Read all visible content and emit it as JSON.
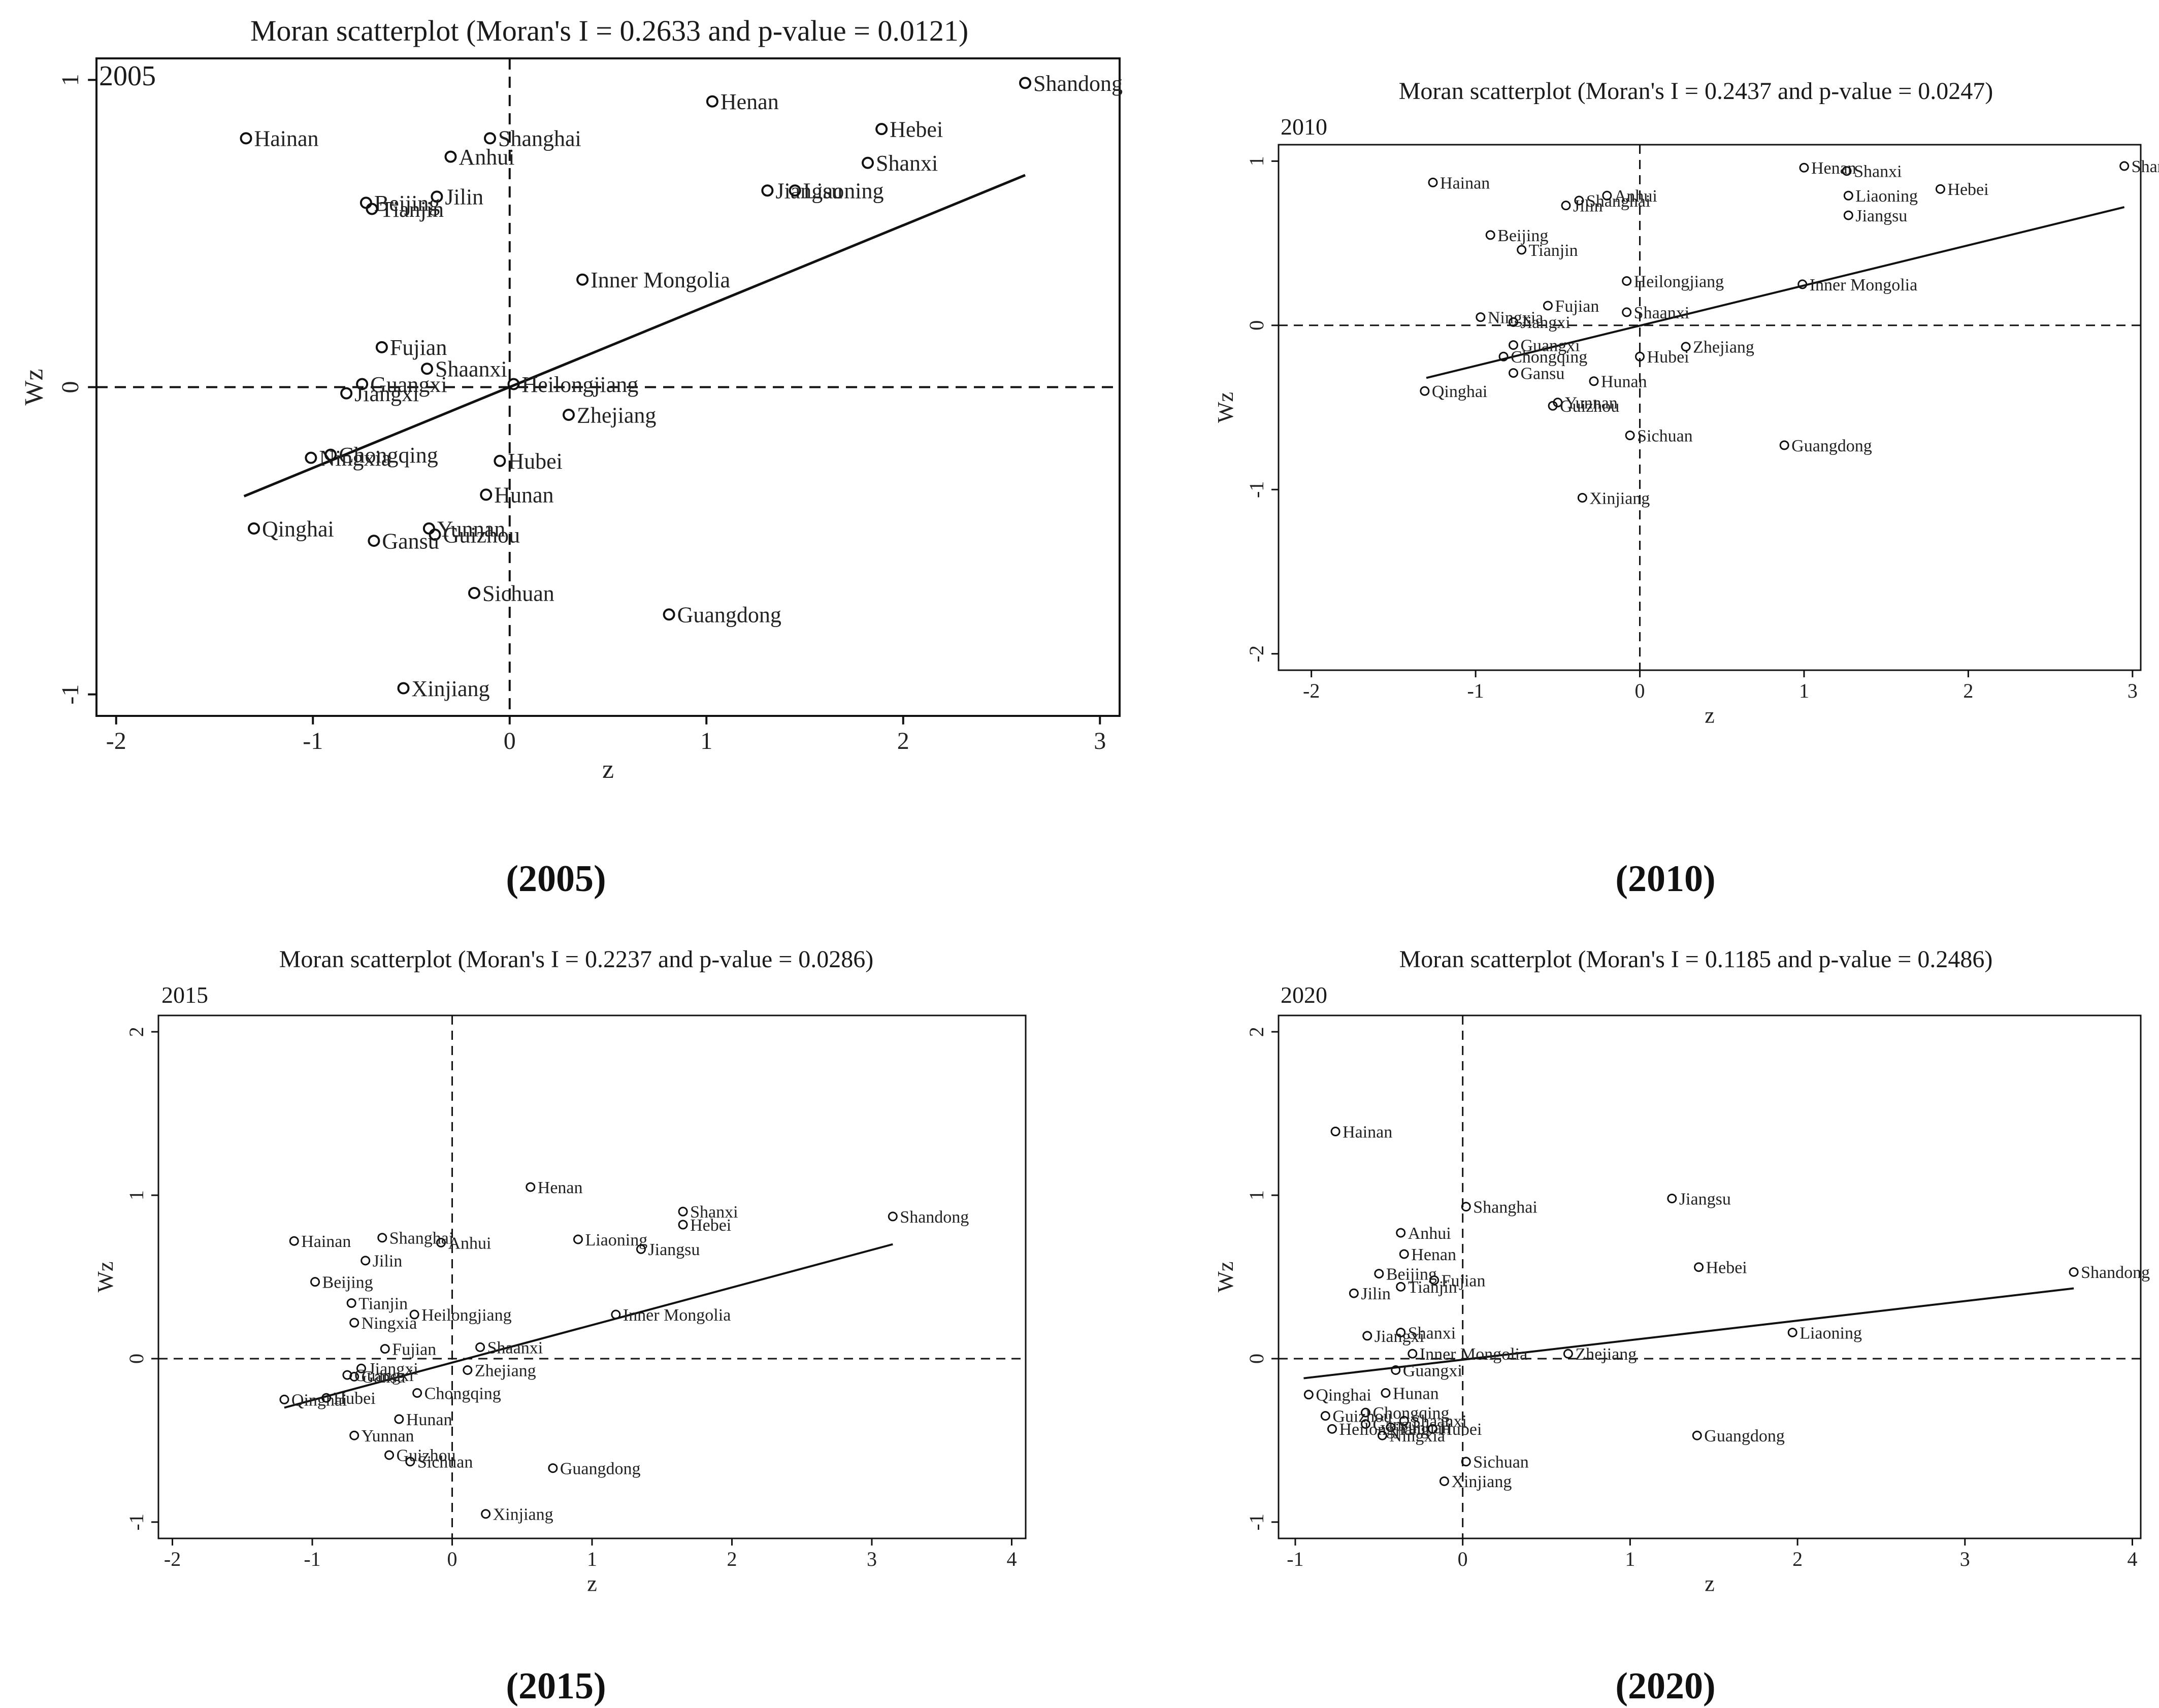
{
  "chart_data": [
    {
      "type": "scatter",
      "year": "2005",
      "title": "Moran scatterplot (Moran's I = 0.2633 and p-value = 0.0121)",
      "caption": "(2005)",
      "xlabel": "z",
      "ylabel": "Wz",
      "xlim": [
        -2.1,
        3.1
      ],
      "ylim": [
        -1.07,
        1.07
      ],
      "xticks": [
        -2,
        -1,
        0,
        1,
        2,
        3
      ],
      "yticks": [
        -1,
        0,
        1
      ],
      "fit_line": {
        "x": [
          -1.35,
          2.62
        ],
        "y": [
          -0.355,
          0.69
        ]
      },
      "points": [
        {
          "name": "Shandong",
          "x": 2.62,
          "y": 0.99
        },
        {
          "name": "Henan",
          "x": 1.03,
          "y": 0.93
        },
        {
          "name": "Hebei",
          "x": 1.89,
          "y": 0.84
        },
        {
          "name": "Shanxi",
          "x": 1.82,
          "y": 0.73
        },
        {
          "name": "Jiangsu",
          "x": 1.31,
          "y": 0.64
        },
        {
          "name": "Liaoning",
          "x": 1.45,
          "y": 0.64
        },
        {
          "name": "Hainan",
          "x": -1.34,
          "y": 0.81
        },
        {
          "name": "Shanghai",
          "x": -0.1,
          "y": 0.81
        },
        {
          "name": "Anhui",
          "x": -0.3,
          "y": 0.75
        },
        {
          "name": "Jilin",
          "x": -0.37,
          "y": 0.62
        },
        {
          "name": "Beijing",
          "x": -0.73,
          "y": 0.6
        },
        {
          "name": "Tianjin",
          "x": -0.7,
          "y": 0.58
        },
        {
          "name": "Inner Mongolia",
          "x": 0.37,
          "y": 0.35
        },
        {
          "name": "Fujian",
          "x": -0.65,
          "y": 0.13
        },
        {
          "name": "Shaanxi",
          "x": -0.42,
          "y": 0.06
        },
        {
          "name": "Heilongjiang",
          "x": 0.02,
          "y": 0.01
        },
        {
          "name": "Guangxi",
          "x": -0.75,
          "y": 0.01
        },
        {
          "name": "Jiangxi",
          "x": -0.83,
          "y": -0.02
        },
        {
          "name": "Zhejiang",
          "x": 0.3,
          "y": -0.09
        },
        {
          "name": "Ningxia",
          "x": -1.01,
          "y": -0.23
        },
        {
          "name": "Chongqing",
          "x": -0.91,
          "y": -0.22
        },
        {
          "name": "Hubei",
          "x": -0.05,
          "y": -0.24
        },
        {
          "name": "Hunan",
          "x": -0.12,
          "y": -0.35
        },
        {
          "name": "Qinghai",
          "x": -1.3,
          "y": -0.46
        },
        {
          "name": "Yunnan",
          "x": -0.41,
          "y": -0.46
        },
        {
          "name": "Guizhou",
          "x": -0.38,
          "y": -0.48
        },
        {
          "name": "Gansu",
          "x": -0.69,
          "y": -0.5
        },
        {
          "name": "Sichuan",
          "x": -0.18,
          "y": -0.67
        },
        {
          "name": "Guangdong",
          "x": 0.81,
          "y": -0.74
        },
        {
          "name": "Xinjiang",
          "x": -0.54,
          "y": -0.98
        }
      ]
    },
    {
      "type": "scatter",
      "year": "2010",
      "title": "Moran scatterplot (Moran's I = 0.2437 and p-value = 0.0247)",
      "caption": "(2010)",
      "xlabel": "z",
      "ylabel": "Wz",
      "xlim": [
        -2.2,
        3.05
      ],
      "ylim": [
        -2.1,
        1.1
      ],
      "xticks": [
        -2,
        -1,
        0,
        1,
        2,
        3
      ],
      "yticks": [
        -2,
        -1,
        0,
        1
      ],
      "fit_line": {
        "x": [
          -1.3,
          2.95
        ],
        "y": [
          -0.32,
          0.72
        ]
      },
      "points": [
        {
          "name": "Shandong",
          "x": 2.95,
          "y": 0.97
        },
        {
          "name": "Henan",
          "x": 1.0,
          "y": 0.96
        },
        {
          "name": "Shanxi",
          "x": 1.26,
          "y": 0.94
        },
        {
          "name": "Hebei",
          "x": 1.83,
          "y": 0.83
        },
        {
          "name": "Liaoning",
          "x": 1.27,
          "y": 0.79
        },
        {
          "name": "Jiangsu",
          "x": 1.27,
          "y": 0.67
        },
        {
          "name": "Hainan",
          "x": -1.26,
          "y": 0.87
        },
        {
          "name": "Shanghai",
          "x": -0.37,
          "y": 0.76
        },
        {
          "name": "Anhui",
          "x": -0.2,
          "y": 0.79
        },
        {
          "name": "Jilin",
          "x": -0.45,
          "y": 0.73
        },
        {
          "name": "Beijing",
          "x": -0.91,
          "y": 0.55
        },
        {
          "name": "Tianjin",
          "x": -0.72,
          "y": 0.46
        },
        {
          "name": "Heilongjiang",
          "x": -0.08,
          "y": 0.27
        },
        {
          "name": "Inner Mongolia",
          "x": 0.99,
          "y": 0.25
        },
        {
          "name": "Fujian",
          "x": -0.56,
          "y": 0.12
        },
        {
          "name": "Ningxia",
          "x": -0.97,
          "y": 0.05
        },
        {
          "name": "Shaanxi",
          "x": -0.08,
          "y": 0.08
        },
        {
          "name": "Jiangxi",
          "x": -0.77,
          "y": 0.02
        },
        {
          "name": "Guangxi",
          "x": -0.77,
          "y": -0.12
        },
        {
          "name": "Chongqing",
          "x": -0.83,
          "y": -0.19
        },
        {
          "name": "Hubei",
          "x": 0.0,
          "y": -0.19
        },
        {
          "name": "Zhejiang",
          "x": 0.28,
          "y": -0.13
        },
        {
          "name": "Gansu",
          "x": -0.77,
          "y": -0.29
        },
        {
          "name": "Hunan",
          "x": -0.28,
          "y": -0.34
        },
        {
          "name": "Qinghai",
          "x": -1.31,
          "y": -0.4
        },
        {
          "name": "Yunnan",
          "x": -0.5,
          "y": -0.47
        },
        {
          "name": "Guizhou",
          "x": -0.53,
          "y": -0.49
        },
        {
          "name": "Sichuan",
          "x": -0.06,
          "y": -0.67
        },
        {
          "name": "Guangdong",
          "x": 0.88,
          "y": -0.73
        },
        {
          "name": "Xinjiang",
          "x": -0.35,
          "y": -1.05
        }
      ]
    },
    {
      "type": "scatter",
      "year": "2015",
      "title": "Moran scatterplot (Moran's I = 0.2237 and p-value = 0.0286)",
      "caption": "(2015)",
      "xlabel": "z",
      "ylabel": "Wz",
      "xlim": [
        -2.1,
        4.1
      ],
      "ylim": [
        -1.1,
        2.1
      ],
      "xticks": [
        -2,
        -1,
        0,
        1,
        2,
        3,
        4
      ],
      "yticks": [
        -1,
        0,
        1,
        2
      ],
      "fit_line": {
        "x": [
          -1.2,
          3.15
        ],
        "y": [
          -0.3,
          0.7
        ]
      },
      "points": [
        {
          "name": "Shandong",
          "x": 3.15,
          "y": 0.87
        },
        {
          "name": "Henan",
          "x": 0.56,
          "y": 1.05
        },
        {
          "name": "Shanxi",
          "x": 1.65,
          "y": 0.9
        },
        {
          "name": "Hebei",
          "x": 1.65,
          "y": 0.82
        },
        {
          "name": "Liaoning",
          "x": 0.9,
          "y": 0.73
        },
        {
          "name": "Jiangsu",
          "x": 1.35,
          "y": 0.67
        },
        {
          "name": "Shanghai",
          "x": -0.5,
          "y": 0.74
        },
        {
          "name": "Anhui",
          "x": -0.08,
          "y": 0.71
        },
        {
          "name": "Hainan",
          "x": -1.13,
          "y": 0.72
        },
        {
          "name": "Jilin",
          "x": -0.62,
          "y": 0.6
        },
        {
          "name": "Beijing",
          "x": -0.98,
          "y": 0.47
        },
        {
          "name": "Tianjin",
          "x": -0.72,
          "y": 0.34
        },
        {
          "name": "Ningxia",
          "x": -0.7,
          "y": 0.22
        },
        {
          "name": "Heilongjiang",
          "x": -0.27,
          "y": 0.27
        },
        {
          "name": "Inner Mongolia",
          "x": 1.17,
          "y": 0.27
        },
        {
          "name": "Fujian",
          "x": -0.48,
          "y": 0.06
        },
        {
          "name": "Shaanxi",
          "x": 0.2,
          "y": 0.07
        },
        {
          "name": "Zhejiang",
          "x": 0.11,
          "y": -0.07
        },
        {
          "name": "Jiangxi",
          "x": -0.65,
          "y": -0.06
        },
        {
          "name": "Gansu",
          "x": -0.7,
          "y": -0.11
        },
        {
          "name": "Guangxi",
          "x": -0.75,
          "y": -0.1
        },
        {
          "name": "Qinghai",
          "x": -1.2,
          "y": -0.25
        },
        {
          "name": "Hubei",
          "x": -0.9,
          "y": -0.24
        },
        {
          "name": "Chongqing",
          "x": -0.25,
          "y": -0.21
        },
        {
          "name": "Hunan",
          "x": -0.38,
          "y": -0.37
        },
        {
          "name": "Yunnan",
          "x": -0.7,
          "y": -0.47
        },
        {
          "name": "Guizhou",
          "x": -0.45,
          "y": -0.59
        },
        {
          "name": "Sichuan",
          "x": -0.3,
          "y": -0.63
        },
        {
          "name": "Guangdong",
          "x": 0.72,
          "y": -0.67
        },
        {
          "name": "Xinjiang",
          "x": 0.24,
          "y": -0.95
        }
      ]
    },
    {
      "type": "scatter",
      "year": "2020",
      "title": "Moran scatterplot (Moran's I = 0.1185 and p-value = 0.2486)",
      "caption": "(2020)",
      "xlabel": "z",
      "ylabel": "Wz",
      "xlim": [
        -1.1,
        4.05
      ],
      "ylim": [
        -1.1,
        2.1
      ],
      "xticks": [
        -1,
        0,
        1,
        2,
        3,
        4
      ],
      "yticks": [
        -1,
        0,
        1,
        2
      ],
      "fit_line": {
        "x": [
          -0.95,
          3.65
        ],
        "y": [
          -0.12,
          0.43
        ]
      },
      "points": [
        {
          "name": "Hainan",
          "x": -0.76,
          "y": 1.39
        },
        {
          "name": "Jiangsu",
          "x": 1.25,
          "y": 0.98
        },
        {
          "name": "Shanghai",
          "x": 0.02,
          "y": 0.93
        },
        {
          "name": "Anhui",
          "x": -0.37,
          "y": 0.77
        },
        {
          "name": "Henan",
          "x": -0.35,
          "y": 0.64
        },
        {
          "name": "Beijing",
          "x": -0.5,
          "y": 0.52
        },
        {
          "name": "Hebei",
          "x": 1.41,
          "y": 0.56
        },
        {
          "name": "Shandong",
          "x": 3.65,
          "y": 0.53
        },
        {
          "name": "Fujian",
          "x": -0.17,
          "y": 0.48
        },
        {
          "name": "Tianjin",
          "x": -0.37,
          "y": 0.44
        },
        {
          "name": "Jilin",
          "x": -0.65,
          "y": 0.4
        },
        {
          "name": "Shanxi",
          "x": -0.37,
          "y": 0.16
        },
        {
          "name": "Liaoning",
          "x": 1.97,
          "y": 0.16
        },
        {
          "name": "Jiangxi",
          "x": -0.57,
          "y": 0.14
        },
        {
          "name": "Inner Mongolia",
          "x": -0.3,
          "y": 0.03
        },
        {
          "name": "Zhejiang",
          "x": 0.63,
          "y": 0.03
        },
        {
          "name": "Guangxi",
          "x": -0.4,
          "y": -0.07
        },
        {
          "name": "Qinghai",
          "x": -0.92,
          "y": -0.22
        },
        {
          "name": "Hunan",
          "x": -0.46,
          "y": -0.21
        },
        {
          "name": "Chongqing",
          "x": -0.58,
          "y": -0.33
        },
        {
          "name": "Guizhou",
          "x": -0.82,
          "y": -0.35
        },
        {
          "name": "Shaanxi",
          "x": -0.35,
          "y": -0.38
        },
        {
          "name": "Gansu",
          "x": -0.58,
          "y": -0.4
        },
        {
          "name": "Yunnan",
          "x": -0.43,
          "y": -0.42
        },
        {
          "name": "Heilongjiang",
          "x": -0.78,
          "y": -0.43
        },
        {
          "name": "Hubei",
          "x": -0.18,
          "y": -0.43
        },
        {
          "name": "Ningxia",
          "x": -0.48,
          "y": -0.47
        },
        {
          "name": "Guangdong",
          "x": 1.4,
          "y": -0.47
        },
        {
          "name": "Sichuan",
          "x": 0.02,
          "y": -0.63
        },
        {
          "name": "Xinjiang",
          "x": -0.11,
          "y": -0.75
        }
      ]
    }
  ]
}
